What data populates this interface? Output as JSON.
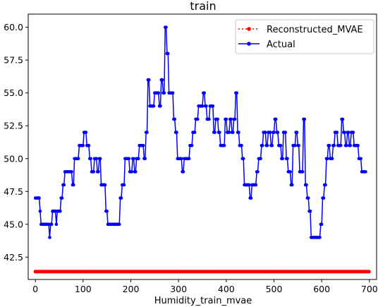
{
  "chart_data": {
    "type": "line",
    "title": "train",
    "xlabel": "Humidity_train_mvae",
    "ylabel": "",
    "xlim": [
      -15,
      715
    ],
    "ylim": [
      40.8,
      61.0
    ],
    "xticks": [
      0,
      100,
      200,
      300,
      400,
      500,
      600,
      700
    ],
    "yticks": [
      42.5,
      45.0,
      47.5,
      50.0,
      52.5,
      55.0,
      57.5,
      60.0
    ],
    "ytick_labels": [
      "42.5",
      "45.0",
      "47.5",
      "50.0",
      "52.5",
      "55.0",
      "57.5",
      "60.0"
    ],
    "legend_position": "top-right",
    "series": [
      {
        "name": "Reconstructed_MVAE",
        "style": "dotted-markers",
        "color": "#ff0000",
        "constant_value": 41.4,
        "x_range": [
          0,
          700
        ],
        "step": 3
      },
      {
        "name": "Actual",
        "style": "line-markers",
        "color": "#0000ff",
        "keypoints": [
          [
            0,
            47
          ],
          [
            8,
            47
          ],
          [
            10,
            46
          ],
          [
            12,
            45
          ],
          [
            20,
            45
          ],
          [
            28,
            45
          ],
          [
            30,
            44
          ],
          [
            34,
            45
          ],
          [
            36,
            46
          ],
          [
            42,
            46
          ],
          [
            44,
            45
          ],
          [
            48,
            46
          ],
          [
            52,
            46
          ],
          [
            56,
            47
          ],
          [
            60,
            48
          ],
          [
            64,
            49
          ],
          [
            70,
            49
          ],
          [
            76,
            49
          ],
          [
            80,
            48
          ],
          [
            84,
            50
          ],
          [
            90,
            50
          ],
          [
            94,
            51
          ],
          [
            100,
            51
          ],
          [
            104,
            52
          ],
          [
            110,
            51
          ],
          [
            116,
            50
          ],
          [
            120,
            49
          ],
          [
            126,
            50
          ],
          [
            132,
            49
          ],
          [
            136,
            50
          ],
          [
            140,
            48
          ],
          [
            146,
            48
          ],
          [
            150,
            46
          ],
          [
            154,
            45
          ],
          [
            158,
            45
          ],
          [
            164,
            45
          ],
          [
            170,
            45
          ],
          [
            176,
            45
          ],
          [
            180,
            47
          ],
          [
            184,
            48
          ],
          [
            190,
            50
          ],
          [
            196,
            50
          ],
          [
            200,
            49
          ],
          [
            206,
            50
          ],
          [
            210,
            49
          ],
          [
            214,
            50
          ],
          [
            220,
            51
          ],
          [
            226,
            51
          ],
          [
            230,
            50
          ],
          [
            234,
            52
          ],
          [
            238,
            56
          ],
          [
            242,
            54
          ],
          [
            248,
            54
          ],
          [
            252,
            55
          ],
          [
            258,
            55
          ],
          [
            262,
            54
          ],
          [
            266,
            56
          ],
          [
            270,
            55
          ],
          [
            274,
            60
          ],
          [
            278,
            58
          ],
          [
            282,
            55
          ],
          [
            288,
            55
          ],
          [
            292,
            53
          ],
          [
            296,
            52
          ],
          [
            300,
            50
          ],
          [
            306,
            50
          ],
          [
            310,
            49
          ],
          [
            314,
            50
          ],
          [
            320,
            50
          ],
          [
            326,
            51
          ],
          [
            332,
            52
          ],
          [
            338,
            53
          ],
          [
            344,
            54
          ],
          [
            350,
            54
          ],
          [
            354,
            55
          ],
          [
            358,
            54
          ],
          [
            362,
            53
          ],
          [
            368,
            54
          ],
          [
            372,
            54
          ],
          [
            376,
            52
          ],
          [
            380,
            53
          ],
          [
            386,
            52
          ],
          [
            390,
            51
          ],
          [
            396,
            51
          ],
          [
            400,
            53
          ],
          [
            404,
            52
          ],
          [
            410,
            53
          ],
          [
            414,
            52
          ],
          [
            418,
            53
          ],
          [
            422,
            55
          ],
          [
            426,
            52
          ],
          [
            430,
            51
          ],
          [
            436,
            50
          ],
          [
            440,
            48
          ],
          [
            446,
            48
          ],
          [
            452,
            47
          ],
          [
            456,
            48
          ],
          [
            460,
            48
          ],
          [
            466,
            49
          ],
          [
            470,
            50
          ],
          [
            476,
            51
          ],
          [
            480,
            52
          ],
          [
            486,
            51
          ],
          [
            490,
            52
          ],
          [
            496,
            51
          ],
          [
            500,
            52
          ],
          [
            504,
            53
          ],
          [
            508,
            52
          ],
          [
            512,
            51
          ],
          [
            518,
            50
          ],
          [
            522,
            52
          ],
          [
            528,
            50
          ],
          [
            532,
            49
          ],
          [
            538,
            48
          ],
          [
            542,
            51
          ],
          [
            548,
            52
          ],
          [
            552,
            51
          ],
          [
            556,
            49
          ],
          [
            560,
            49
          ],
          [
            564,
            53
          ],
          [
            568,
            48
          ],
          [
            572,
            47
          ],
          [
            576,
            46
          ],
          [
            580,
            44
          ],
          [
            586,
            44
          ],
          [
            592,
            44
          ],
          [
            596,
            44
          ],
          [
            600,
            45
          ],
          [
            604,
            47
          ],
          [
            608,
            48
          ],
          [
            612,
            50
          ],
          [
            616,
            51
          ],
          [
            620,
            50
          ],
          [
            626,
            51
          ],
          [
            630,
            52
          ],
          [
            636,
            51
          ],
          [
            640,
            51
          ],
          [
            644,
            53
          ],
          [
            648,
            52
          ],
          [
            652,
            51
          ],
          [
            656,
            52
          ],
          [
            660,
            51
          ],
          [
            664,
            52
          ],
          [
            670,
            51
          ],
          [
            676,
            51
          ],
          [
            680,
            50
          ],
          [
            686,
            49
          ],
          [
            692,
            49
          ]
        ]
      }
    ]
  }
}
